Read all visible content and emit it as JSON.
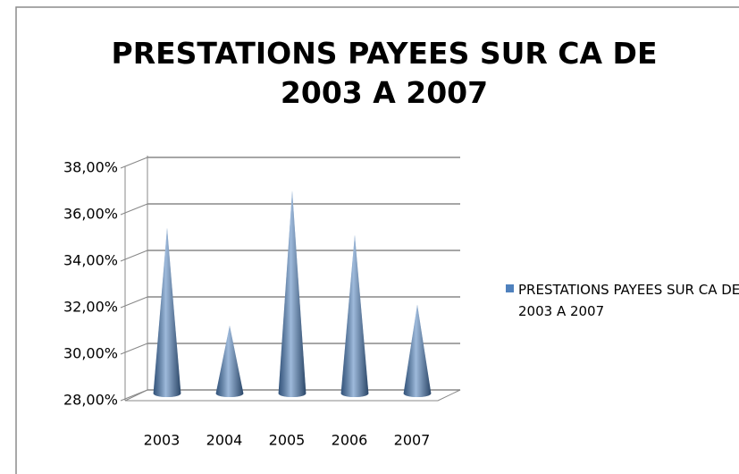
{
  "chart_data": {
    "type": "cone",
    "title": "PRESTATIONS PAYEES SUR CA DE 2003 A 2007",
    "categories": [
      "2003",
      "2004",
      "2005",
      "2006",
      "2007"
    ],
    "series": [
      {
        "name": "PRESTATIONS PAYEES SUR CA DE 2003 A 2007",
        "color": "#4f81bd",
        "values": [
          35.2,
          31.0,
          36.8,
          34.9,
          31.9
        ]
      }
    ],
    "ylim": [
      28,
      38
    ],
    "yticks": [
      {
        "value": 28,
        "label": "28,00%"
      },
      {
        "value": 30,
        "label": "30,00%"
      },
      {
        "value": 32,
        "label": "32,00%"
      },
      {
        "value": 34,
        "label": "34,00%"
      },
      {
        "value": 36,
        "label": "36,00%"
      },
      {
        "value": 38,
        "label": "38,00%"
      }
    ],
    "grid": true,
    "legend": "right"
  }
}
